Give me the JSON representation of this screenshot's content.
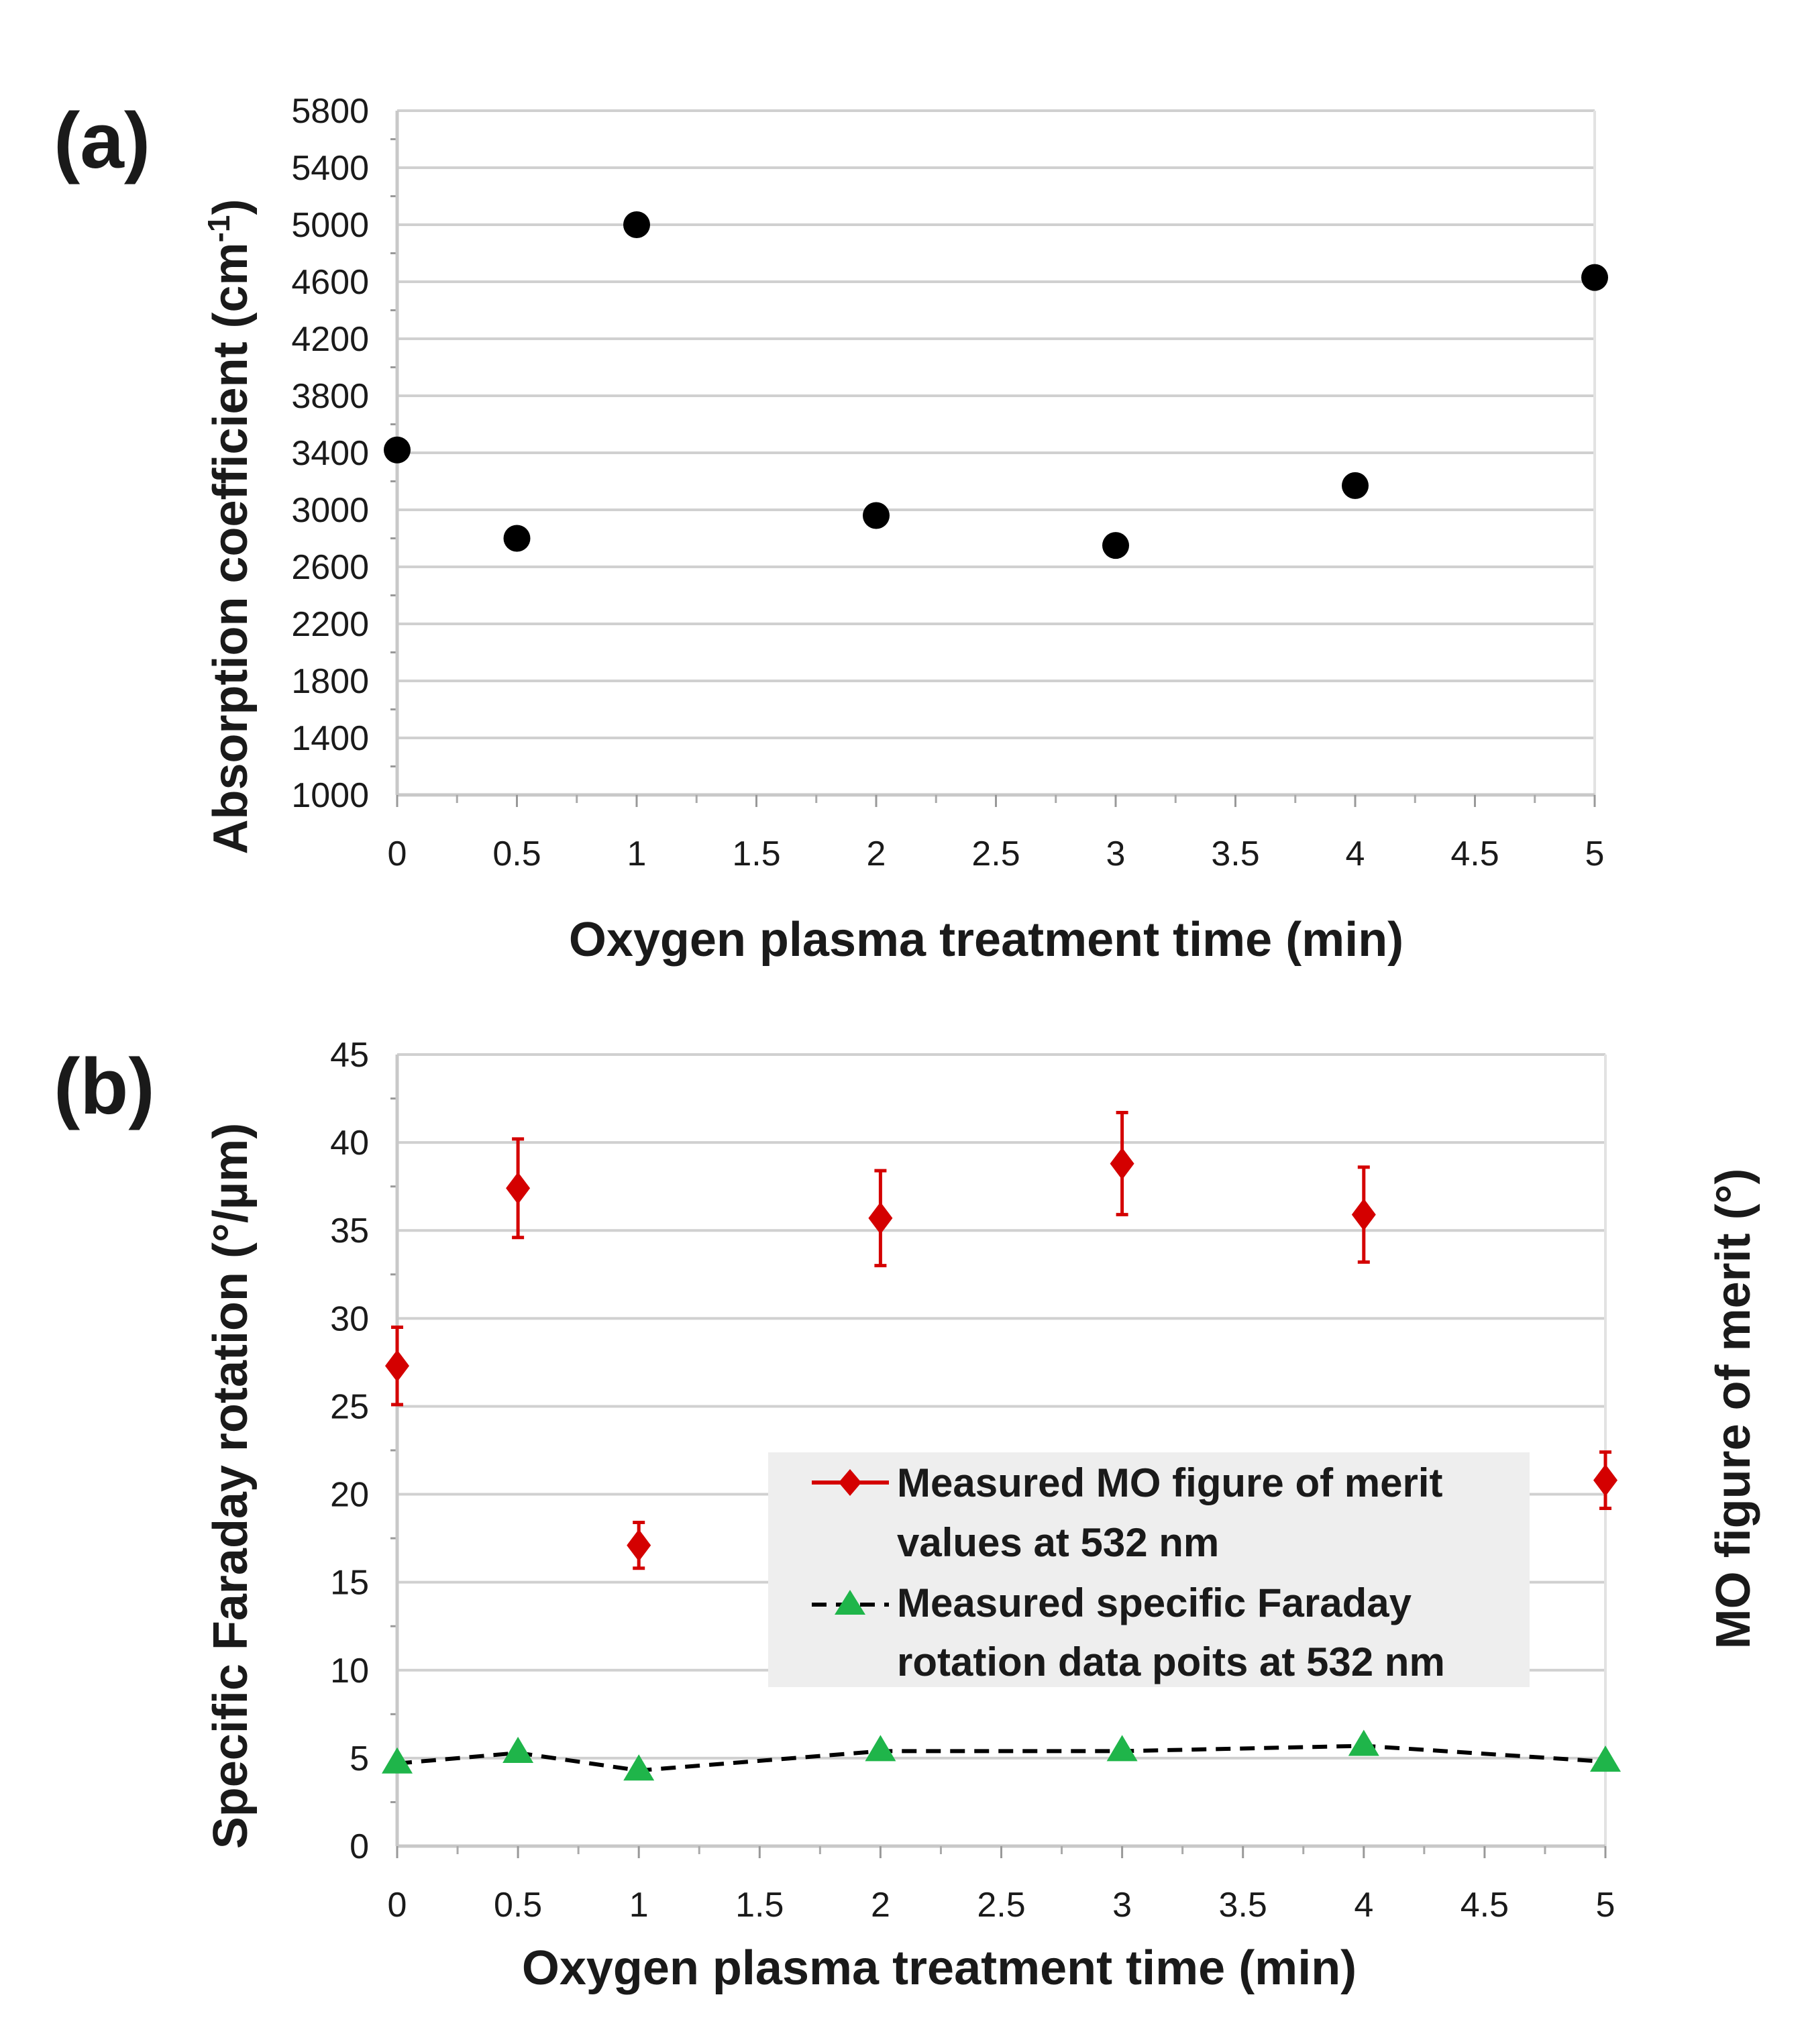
{
  "chart_data": [
    {
      "id": "a",
      "panel_label": "(a)",
      "type": "scatter",
      "title": "",
      "xlabel": "Oxygen plasma treatment time (min)",
      "ylabel_main": "Absorption coefficient (cm",
      "ylabel_sup": "-1",
      "ylabel_close": ")",
      "xlim": [
        0,
        5
      ],
      "ylim": [
        1000,
        5800
      ],
      "grid": true,
      "x_ticks": [
        "0",
        "0.5",
        "1",
        "1.5",
        "2",
        "2.5",
        "3",
        "3.5",
        "4",
        "4.5",
        "5"
      ],
      "y_ticks": [
        "1000",
        "1400",
        "1800",
        "2200",
        "2600",
        "3000",
        "3400",
        "3800",
        "4200",
        "4600",
        "5000",
        "5400",
        "5800"
      ],
      "series": [
        {
          "name": "Absorption coefficient",
          "color": "#000000",
          "x": [
            0,
            0.5,
            1,
            2,
            3,
            4,
            5
          ],
          "y": [
            3420,
            2800,
            5000,
            2960,
            2750,
            3170,
            4630
          ]
        }
      ]
    },
    {
      "id": "b",
      "panel_label": "(b)",
      "type": "line",
      "title": "",
      "xlabel": "Oxygen plasma treatment time (min)",
      "ylabel_left": "Specific Faraday rotation (°/µm)",
      "ylabel_right": "MO figure of merit (°)",
      "xlim": [
        0,
        5
      ],
      "ylim": [
        0,
        45
      ],
      "grid": true,
      "x_ticks": [
        "0",
        "0.5",
        "1",
        "1.5",
        "2",
        "2.5",
        "3",
        "3.5",
        "4",
        "4.5",
        "5"
      ],
      "y_ticks": [
        "0",
        "5",
        "10",
        "15",
        "20",
        "25",
        "30",
        "35",
        "40",
        "45"
      ],
      "legend_position": "center-right",
      "series": [
        {
          "name": "Measured MO figure of merit values at 532 nm",
          "legend_lines": [
            "Measured MO figure of merit",
            "values at 532 nm"
          ],
          "color": "#d40000",
          "marker": "diamond",
          "line": "none",
          "x": [
            0,
            0.5,
            1,
            2,
            3,
            4,
            5
          ],
          "y": [
            27.3,
            37.4,
            17.1,
            35.7,
            38.8,
            35.9,
            20.8
          ],
          "yerr": [
            2.2,
            2.8,
            1.3,
            2.7,
            2.9,
            2.7,
            1.6
          ]
        },
        {
          "name": "Measured specific Faraday rotation data poits at 532 nm",
          "legend_lines": [
            "Measured specific Faraday",
            "rotation data poits at 532 nm"
          ],
          "color": "#1fb54a",
          "line_color": "#000000",
          "marker": "triangle",
          "line": "dashed",
          "x": [
            0,
            0.5,
            1,
            2,
            3,
            4,
            5
          ],
          "y": [
            4.7,
            5.3,
            4.3,
            5.4,
            5.4,
            5.7,
            4.8
          ]
        }
      ]
    }
  ]
}
